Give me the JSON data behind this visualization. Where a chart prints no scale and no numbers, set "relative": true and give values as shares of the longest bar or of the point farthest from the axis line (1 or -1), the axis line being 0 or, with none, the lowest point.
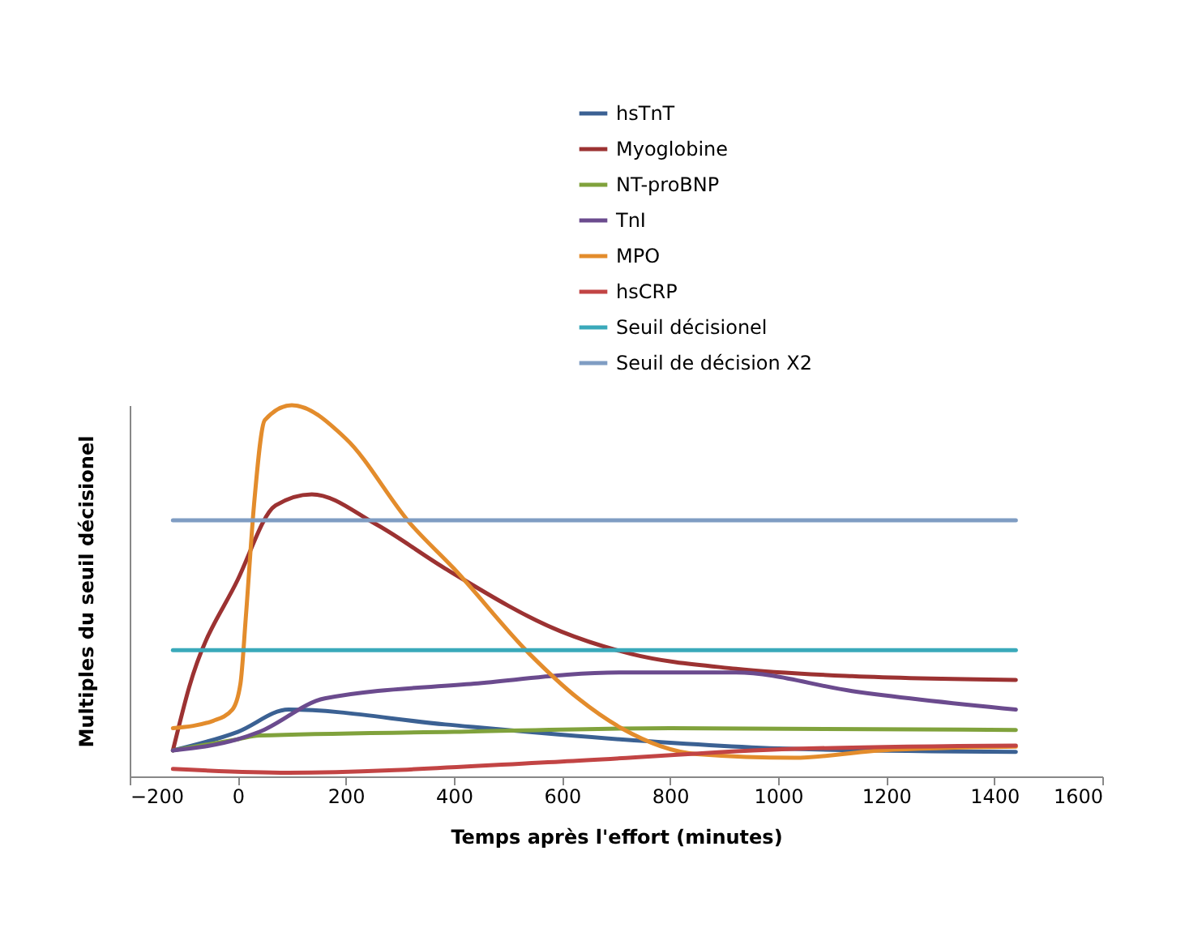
{
  "chart_data": {
    "type": "line",
    "relative": true,
    "xlabel": "Temps après l'effort (minutes)",
    "ylabel": "Multiples du seuil décisionel",
    "xlim": [
      -200,
      1600
    ],
    "xticks": [
      -200,
      0,
      200,
      400,
      600,
      800,
      1000,
      1200,
      1400,
      1600
    ],
    "grid": false,
    "legend": "top right",
    "series": [
      {
        "name": "hsTnT",
        "color": "#3b6193",
        "x": [
          -120,
          0,
          94,
          384,
          707,
          1030,
          1440
        ],
        "values": [
          0.07,
          0.12,
          0.18,
          0.14,
          0.1,
          0.074,
          0.066
        ]
      },
      {
        "name": "Myoglobine",
        "color": "#9c3232",
        "x": [
          -120,
          -90,
          0,
          70,
          137,
          255,
          384,
          599,
          728,
          922,
          1137,
          1440
        ],
        "values": [
          0.07,
          0.24,
          0.53,
          0.73,
          0.76,
          0.68,
          0.56,
          0.39,
          0.33,
          0.29,
          0.27,
          0.26
        ]
      },
      {
        "name": "NT-proBNP",
        "color": "#80a23c",
        "x": [
          -120,
          0,
          40,
          400,
          800,
          1440
        ],
        "values": [
          0.07,
          0.1,
          0.11,
          0.12,
          0.13,
          0.125
        ]
      },
      {
        "name": "TnI",
        "color": "#6b4b8e",
        "x": [
          -120,
          0,
          40,
          161,
          438,
          707,
          922,
          1137,
          1440
        ],
        "values": [
          0.07,
          0.1,
          0.12,
          0.21,
          0.25,
          0.28,
          0.28,
          0.23,
          0.18
        ]
      },
      {
        "name": "MPO",
        "color": "#e38c2c",
        "x": [
          -120,
          -45,
          -10,
          5,
          15,
          30,
          50,
          100,
          200,
          320,
          400,
          540,
          630,
          710,
          850,
          1030,
          1190,
          1440
        ],
        "values": [
          0.13,
          0.15,
          0.18,
          0.25,
          0.43,
          0.73,
          0.96,
          1,
          0.91,
          0.68,
          0.56,
          0.33,
          0.21,
          0.13,
          0.06,
          0.05,
          0.07,
          0.08
        ]
      },
      {
        "name": "hsCRP",
        "color": "#c24444",
        "x": [
          -120,
          94,
          599,
          1030,
          1440
        ],
        "values": [
          0.02,
          0.01,
          0.04,
          0.074,
          0.083
        ]
      },
      {
        "name": "Seuil décisionel",
        "color": "#3aa9ba",
        "x": [
          -120,
          1440
        ],
        "values": [
          0.34,
          0.34
        ]
      },
      {
        "name": "Seuil de décision X2",
        "color": "#7f9dc3",
        "x": [
          -120,
          1440
        ],
        "values": [
          0.69,
          0.69
        ]
      }
    ]
  }
}
